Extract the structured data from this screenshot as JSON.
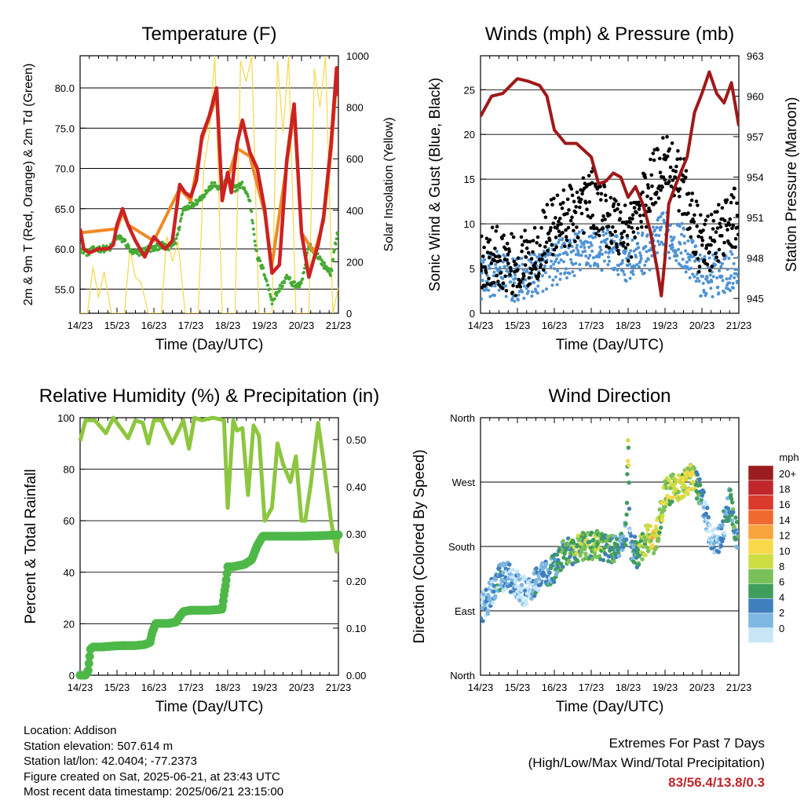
{
  "chart_data": [
    {
      "type": "line",
      "title": "Temperature (F)",
      "xlabel": "Time (Day/UTC)",
      "ylabel": "2m & 9m T (Red, Orange) & 2m Td (Green)",
      "ylabel_right": "Solar Insolation (Yellow)",
      "x_ticks": [
        "14/23",
        "15/23",
        "16/23",
        "17/23",
        "18/23",
        "19/23",
        "20/23",
        "21/23"
      ],
      "y_ticks": [
        "55.0",
        "60.0",
        "65.0",
        "70.0",
        "75.0",
        "80.0"
      ],
      "y_right_ticks": [
        "0",
        "200",
        "400",
        "600",
        "800",
        "1000"
      ],
      "ylim": [
        52,
        84
      ],
      "y_right_lim": [
        0,
        1000
      ],
      "grid": true,
      "colors": {
        "temp2m": "#cc2222",
        "temp9m": "#f08a24",
        "dewpoint": "#44aa33",
        "solar": "#f5d84a"
      },
      "series": [
        {
          "name": "2m T",
          "x": [
            0,
            0.1,
            0.25,
            0.5,
            0.75,
            0.9,
            1.0,
            1.15,
            1.3,
            1.5,
            1.75,
            2.0,
            2.3,
            2.5,
            2.7,
            2.85,
            3.0,
            3.15,
            3.3,
            3.5,
            3.7,
            3.85,
            4.0,
            4.1,
            4.25,
            4.4,
            4.6,
            4.8,
            5.0,
            5.2,
            5.4,
            5.6,
            5.8,
            6.0,
            6.2,
            6.35,
            6.45,
            6.6,
            6.8,
            6.95,
            7.0
          ],
          "values": [
            62.5,
            60,
            59.5,
            60,
            60,
            60.5,
            63,
            65,
            63,
            61,
            59,
            61.5,
            60,
            61,
            68,
            67,
            66.5,
            68.5,
            74,
            76.5,
            80,
            66,
            69.5,
            67,
            73,
            76,
            72,
            70,
            65,
            57,
            58,
            71,
            78,
            62,
            56.5,
            59,
            60.5,
            64,
            73,
            82.5,
            79
          ]
        },
        {
          "name": "9m T",
          "x": [
            0,
            1.0,
            1.15,
            1.3,
            2.0,
            2.7,
            3.0,
            3.3,
            3.7,
            3.85,
            4.25,
            4.6,
            5.0,
            5.2,
            5.6,
            5.8,
            6.0,
            6.35,
            6.6,
            6.8,
            6.95,
            7.0
          ],
          "values": [
            62,
            62.5,
            64.5,
            63,
            61,
            67.5,
            66,
            73.5,
            79,
            66.5,
            72.5,
            71.5,
            64.5,
            58,
            70.5,
            77,
            62,
            59.5,
            63.5,
            72,
            81,
            79
          ]
        },
        {
          "name": "2m Td",
          "x": [
            0,
            0.2,
            0.4,
            0.6,
            0.8,
            1.0,
            1.2,
            1.4,
            1.6,
            1.8,
            2.0,
            2.2,
            2.4,
            2.6,
            2.8,
            3.0,
            3.2,
            3.4,
            3.6,
            3.8,
            4.0,
            4.2,
            4.4,
            4.6,
            4.8,
            5.0,
            5.2,
            5.4,
            5.6,
            5.8,
            6.0,
            6.2,
            6.4,
            6.6,
            6.8,
            6.95,
            7.0
          ],
          "values": [
            60,
            59.5,
            60,
            60,
            60,
            61.5,
            61,
            59.5,
            59.5,
            60,
            60,
            60.5,
            60,
            61,
            65,
            65.5,
            66,
            67,
            68,
            67.5,
            68.5,
            67.5,
            68,
            66,
            59,
            57,
            53.5,
            55,
            56.5,
            55.5,
            55.5,
            60.5,
            59.5,
            58,
            57,
            61.5,
            62.5
          ]
        },
        {
          "name": "Solar Insolation",
          "x": [
            0,
            0.2,
            0.35,
            0.5,
            0.65,
            0.85,
            1.0,
            1.2,
            1.35,
            1.5,
            1.65,
            1.85,
            2.0,
            2.2,
            2.35,
            2.5,
            2.65,
            2.85,
            3.0,
            3.2,
            3.35,
            3.5,
            3.65,
            3.85,
            4.0,
            4.2,
            4.35,
            4.5,
            4.65,
            4.85,
            5.0,
            5.2,
            5.35,
            5.5,
            5.65,
            5.85,
            6.0,
            6.2,
            6.35,
            6.5,
            6.65,
            6.85,
            7.0
          ],
          "values": [
            0,
            0,
            180,
            60,
            160,
            0,
            0,
            0,
            250,
            140,
            120,
            0,
            0,
            0,
            300,
            200,
            280,
            0,
            0,
            0,
            560,
            700,
            1000,
            0,
            0,
            0,
            980,
            900,
            1000,
            0,
            0,
            0,
            980,
            700,
            1000,
            0,
            0,
            0,
            950,
            800,
            1000,
            0,
            100
          ]
        }
      ]
    },
    {
      "type": "scatter",
      "title": "Winds (mph) & Pressure (mb)",
      "xlabel": "Time (Day/UTC)",
      "ylabel": "Sonic Wind & Gust (Blue, Black)",
      "ylabel_right": "Station Pressure (Maroon)",
      "x_ticks": [
        "14/23",
        "15/23",
        "16/23",
        "17/23",
        "18/23",
        "19/23",
        "20/23",
        "21/23"
      ],
      "y_ticks": [
        "0",
        "5",
        "10",
        "15",
        "20",
        "25"
      ],
      "y_right_ticks": [
        "945",
        "948",
        "951",
        "954",
        "957",
        "960",
        "963"
      ],
      "ylim": [
        0,
        28.8
      ],
      "y_right_lim": [
        943.9,
        963
      ],
      "grid": true,
      "colors": {
        "wind": "#4f93d3",
        "gust": "#000000",
        "pressure": "#a01818"
      },
      "series": [
        {
          "name": "Sonic Wind",
          "x": [
            0,
            0.5,
            1.0,
            1.5,
            2.0,
            2.5,
            3.0,
            3.5,
            4.0,
            4.5,
            5.0,
            5.5,
            6.0,
            6.5,
            7.0
          ],
          "values": [
            4,
            4.5,
            3.5,
            4.5,
            5.5,
            6.5,
            7.5,
            7,
            6,
            7,
            9,
            7.5,
            4,
            4.5,
            5.5
          ]
        },
        {
          "name": "Gust",
          "x": [
            0,
            0.5,
            1.0,
            1.5,
            2.0,
            2.5,
            3.0,
            3.5,
            4.0,
            4.5,
            5.0,
            5.5,
            6.0,
            6.5,
            7.0
          ],
          "values": [
            6,
            6.5,
            5,
            7,
            10,
            11,
            13,
            10.5,
            9,
            13,
            17.5,
            14,
            7,
            9,
            11
          ]
        },
        {
          "name": "Station Pressure",
          "x": [
            0,
            0.3,
            0.6,
            1.0,
            1.3,
            1.6,
            1.8,
            2.0,
            2.3,
            2.6,
            3.0,
            3.2,
            3.4,
            3.6,
            3.8,
            4.0,
            4.2,
            4.4,
            4.6,
            4.8,
            4.9,
            5.0,
            5.1,
            5.3,
            5.6,
            5.8,
            6.0,
            6.2,
            6.4,
            6.6,
            6.8,
            7.0
          ],
          "values": [
            958.5,
            960,
            960.2,
            961.3,
            961.1,
            960.8,
            960,
            957.5,
            956.5,
            956.5,
            955.5,
            953.5,
            953.7,
            954.3,
            954,
            952.5,
            953.3,
            952,
            950,
            947,
            945.2,
            948,
            952,
            953.5,
            955.5,
            958.8,
            960.2,
            961.8,
            960.2,
            959.5,
            961,
            957.8
          ]
        }
      ]
    },
    {
      "type": "line",
      "title": "Relative Humidity (%) & Precipitation (in)",
      "xlabel": "Time (Day/UTC)",
      "ylabel": "Percent & Total Rainfall",
      "x_ticks": [
        "14/23",
        "15/23",
        "16/23",
        "17/23",
        "18/23",
        "19/23",
        "20/23",
        "21/23"
      ],
      "y_ticks": [
        "0",
        "20",
        "40",
        "60",
        "80",
        "100"
      ],
      "y_right_ticks": [
        "0.00",
        "0.10",
        "0.20",
        "0.30",
        "0.40",
        "0.50"
      ],
      "ylim": [
        0,
        100
      ],
      "y_right_lim": [
        0,
        0.5464
      ],
      "grid": true,
      "colors": {
        "rh": "#8dc63f",
        "precip": "#4db848"
      },
      "series": [
        {
          "name": "Relative Humidity",
          "x": [
            0,
            0.15,
            0.4,
            0.7,
            0.9,
            1.1,
            1.3,
            1.5,
            1.7,
            1.85,
            2.0,
            2.2,
            2.5,
            2.8,
            2.95,
            3.1,
            3.3,
            3.6,
            3.9,
            4.0,
            4.15,
            4.25,
            4.4,
            4.55,
            4.7,
            4.85,
            5.0,
            5.2,
            5.35,
            5.5,
            5.7,
            5.85,
            6.0,
            6.1,
            6.25,
            6.45,
            6.6,
            6.8,
            6.95,
            7.0
          ],
          "values": [
            91,
            99,
            99,
            94,
            100,
            96,
            92,
            99,
            98,
            90,
            99,
            99,
            90,
            99,
            88,
            100,
            99,
            100,
            99,
            65,
            99,
            95,
            96,
            70,
            97,
            93,
            60,
            65,
            90,
            82,
            75,
            85,
            60,
            60,
            74,
            98,
            83,
            60,
            48,
            54
          ]
        },
        {
          "name": "Total Rainfall",
          "x": [
            0,
            0.15,
            0.22,
            0.28,
            0.35,
            0.6,
            0.9,
            1.2,
            1.5,
            1.75,
            1.9,
            1.95,
            2.05,
            2.4,
            2.6,
            2.7,
            2.8,
            3.0,
            3.5,
            3.85,
            3.9,
            3.95,
            4.0,
            4.15,
            4.25,
            4.45,
            4.65,
            4.8,
            4.95,
            5.0,
            5.5,
            6.0,
            6.5,
            6.8,
            7.0
          ],
          "values": [
            0,
            0,
            0.01,
            0.055,
            0.06,
            0.06,
            0.062,
            0.063,
            0.063,
            0.065,
            0.07,
            0.09,
            0.11,
            0.11,
            0.113,
            0.125,
            0.135,
            0.138,
            0.138,
            0.14,
            0.17,
            0.195,
            0.23,
            0.23,
            0.232,
            0.235,
            0.245,
            0.275,
            0.295,
            0.295,
            0.295,
            0.295,
            0.296,
            0.297,
            0.298
          ]
        }
      ]
    },
    {
      "type": "scatter",
      "title": "Wind Direction",
      "xlabel": "Time (Day/UTC)",
      "ylabel": "Direction (Colored By Speed)",
      "x_ticks": [
        "14/23",
        "15/23",
        "16/23",
        "17/23",
        "18/23",
        "19/23",
        "20/23",
        "21/23"
      ],
      "y_ticks": [
        "North",
        "East",
        "South",
        "West",
        "North"
      ],
      "ylim": [
        0,
        360
      ],
      "grid": true,
      "legend": {
        "title": "mph",
        "labels": [
          "20+",
          "18",
          "16",
          "14",
          "12",
          "10",
          "8",
          "6",
          "4",
          "2",
          "0"
        ],
        "colors": [
          "#9a1c1f",
          "#c0262a",
          "#db3a2c",
          "#f06a2f",
          "#f8a33d",
          "#f8d94a",
          "#cddd44",
          "#7bc15a",
          "#3e9e5a",
          "#3f7fbe",
          "#7db7e2",
          "#c7e7f7"
        ],
        "placement": "right"
      },
      "series": [
        {
          "name": "Direction",
          "x": [
            0,
            0.25,
            0.5,
            0.75,
            1.0,
            1.25,
            1.5,
            1.75,
            2.0,
            2.25,
            2.5,
            2.75,
            3.0,
            3.25,
            3.5,
            3.75,
            3.95,
            4.0,
            4.05,
            4.25,
            4.5,
            4.75,
            5.0,
            5.25,
            5.5,
            5.75,
            6.0,
            6.25,
            6.5,
            6.75,
            7.0
          ],
          "values": [
            90,
            110,
            135,
            140,
            125,
            115,
            130,
            140,
            150,
            170,
            175,
            180,
            180,
            182,
            178,
            172,
            200,
            330,
            185,
            170,
            190,
            190,
            255,
            262,
            268,
            278,
            250,
            190,
            190,
            245,
            180
          ],
          "speeds": [
            3,
            3,
            4,
            3,
            2,
            3,
            4,
            3,
            5,
            7,
            8,
            9,
            8,
            9,
            7,
            5,
            5,
            12,
            4,
            7,
            11,
            12,
            9,
            11,
            10,
            12,
            4,
            2,
            3,
            5,
            6
          ]
        }
      ]
    }
  ],
  "info": {
    "location": "Location: Addison",
    "elevation": "Station elevation: 507.614 m",
    "latlon": "Station lat/lon: 42.0404; -77.2373",
    "created": "Figure created on Sat, 2025-06-21, at 23:43 UTC",
    "recent": "Most recent data timestamp: 2025/06/21 23:15:00"
  },
  "extremes": {
    "line1": "Extremes For Past 7 Days",
    "line2": "(High/Low/Max Wind/Total Precipitation)",
    "values": "83/56.4/13.8/0.3"
  }
}
